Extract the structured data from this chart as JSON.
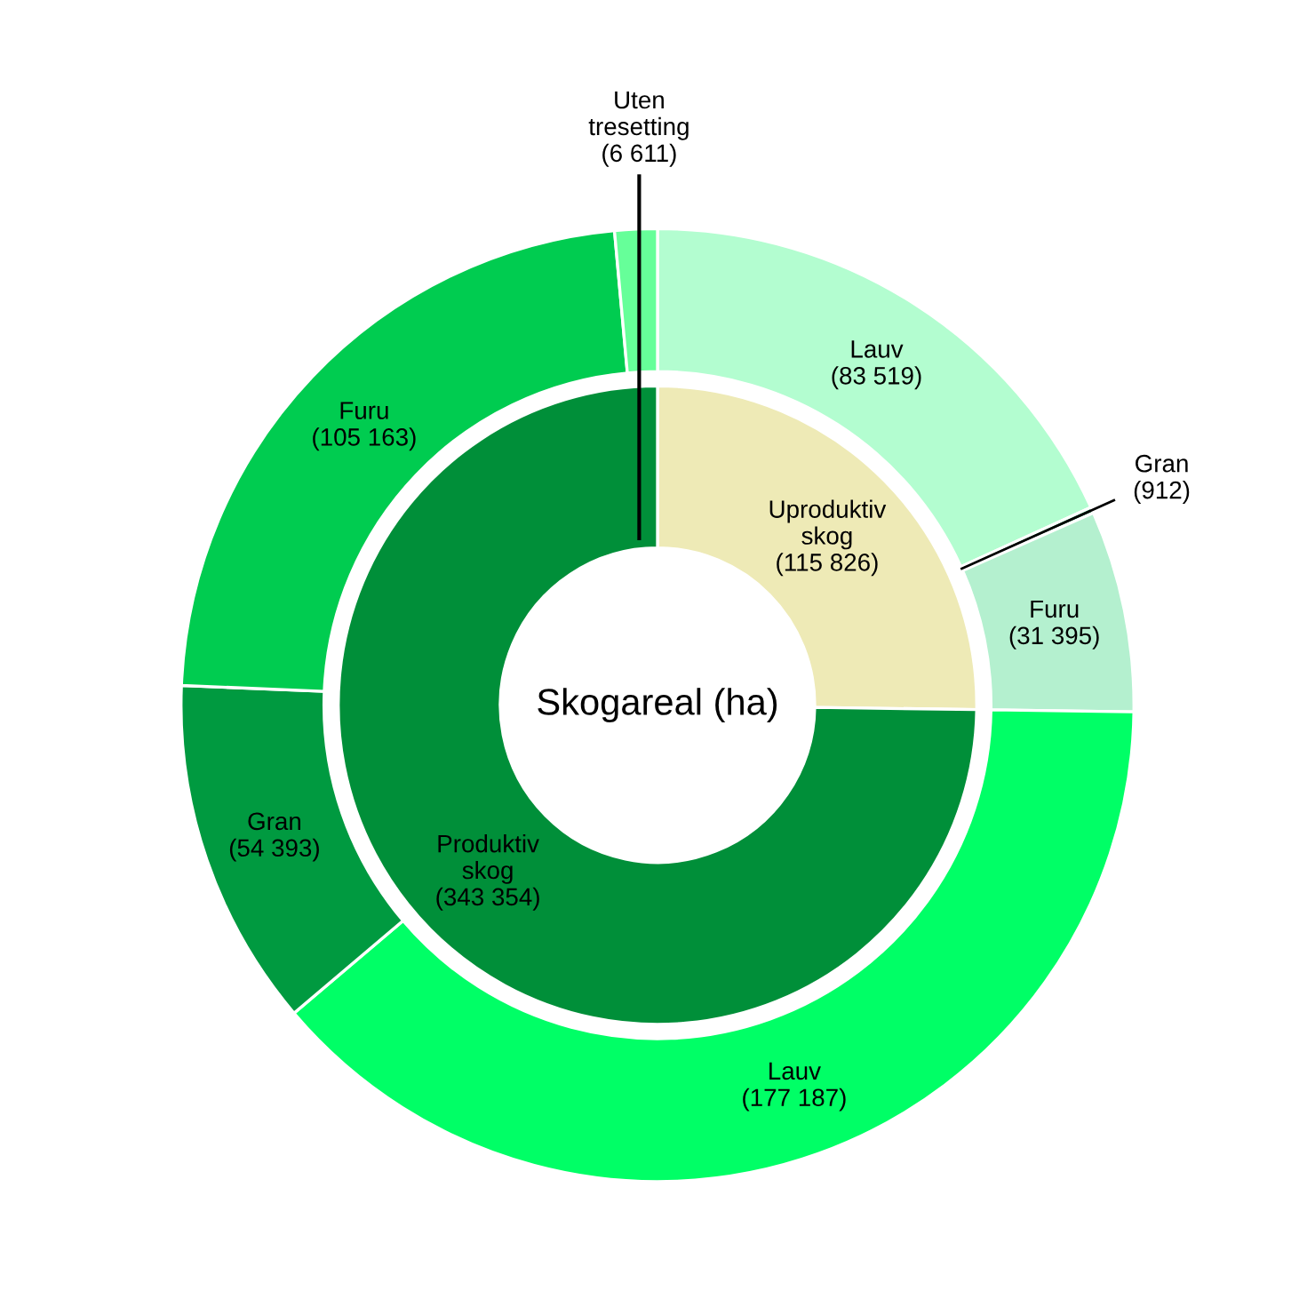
{
  "chart_data": {
    "type": "donut",
    "title": "Skogareal (ha)",
    "series": [
      {
        "values": [
          115826,
          343354
        ],
        "colors": [
          "#eeeab6",
          "#008f39"
        ],
        "value_labels": [
          "Uproduktiv\nskog\n(115 826)",
          "Produktiv\nskog\n(343 354)"
        ]
      },
      {
        "values": [
          83519,
          912,
          31395,
          177187,
          54393,
          105163,
          6611
        ],
        "colors": [
          "#b3fdd0",
          "#13924a",
          "#b4f0cf",
          "#00ff66",
          "#009a40",
          "#00cc50",
          "#66ff99"
        ],
        "value_labels": [
          "Lauv\n(83 519)",
          "Gran\n(912)",
          "Furu\n(31 395)",
          "Lauv\n(177 187)",
          "Gran\n(54 393)",
          "Furu\n(105 163)",
          "Uten\ntresetting\n(6 611)"
        ]
      }
    ]
  }
}
